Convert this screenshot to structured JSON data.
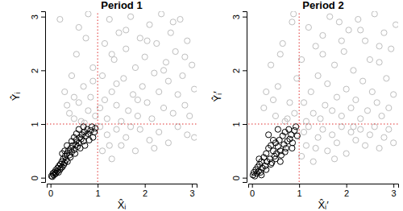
{
  "chart_data": [
    {
      "type": "scatter",
      "title": "Period 1",
      "x_label": "X̂ᵢ",
      "y_label": "Ŷᵢ",
      "xlim": [
        -0.08,
        3.1
      ],
      "ylim": [
        -0.08,
        3.1
      ],
      "xticks": [
        0,
        1,
        2,
        3
      ],
      "yticks": [
        0,
        1,
        2,
        3
      ],
      "marker": "open-circle",
      "vlines": [
        1
      ],
      "hlines": [
        1
      ],
      "series": [
        {
          "color": "#bebebe",
          "x": [
            0.2,
            0.3,
            0.4,
            0.45,
            0.5,
            0.55,
            0.6,
            0.65,
            0.7,
            0.75,
            0.8,
            0.85,
            0.9,
            0.95,
            0.35,
            0.6,
            0.8,
            0.9,
            0.5,
            0.72,
            1.1,
            1.2,
            1.3,
            1.4,
            1.5,
            1.6,
            1.8,
            1.9,
            2.1,
            2.3,
            2.5,
            2.7,
            2.9,
            1.05,
            1.7,
            2.2,
            1.25,
            3.05,
            1.05,
            1.1,
            1.15,
            1.2,
            1.25,
            1.3,
            1.35,
            1.4,
            1.45,
            1.5,
            1.55,
            1.6,
            1.65,
            1.7,
            1.75,
            1.8,
            1.85,
            1.9,
            1.95,
            2.0,
            2.05,
            2.1,
            2.15,
            2.2,
            2.25,
            2.3,
            2.35,
            2.4,
            2.45,
            2.5,
            2.55,
            2.6,
            2.65,
            2.7,
            2.75,
            2.8,
            2.85,
            2.9,
            2.95,
            3.0,
            3.05,
            1.15,
            1.4,
            1.85,
            2.05,
            2.4,
            2.6,
            2.85,
            1.6,
            1.3
          ],
          "values": [
            2.95,
            1.6,
            1.2,
            1.9,
            1.1,
            2.3,
            1.4,
            1.05,
            1.7,
            2.6,
            1.25,
            1.5,
            2.05,
            1.15,
            1.35,
            2.8,
            3.05,
            1.8,
            1.5,
            1.02,
            0.5,
            0.8,
            0.35,
            0.9,
            0.6,
            0.75,
            0.5,
            0.9,
            0.7,
            0.85,
            0.65,
            0.95,
            0.8,
            0.95,
            0.95,
            0.55,
            0.6,
            0.75,
            1.3,
            1.9,
            2.5,
            1.1,
            2.95,
            1.6,
            2.2,
            1.35,
            2.7,
            1.05,
            1.85,
            2.4,
            1.25,
            3.0,
            1.55,
            2.05,
            1.15,
            2.6,
            1.7,
            2.25,
            1.4,
            2.85,
            1.1,
            1.95,
            2.5,
            1.6,
            3.05,
            1.3,
            2.15,
            1.8,
            2.7,
            1.2,
            2.35,
            1.55,
            2.95,
            1.9,
            1.35,
            2.55,
            1.15,
            2.1,
            1.65,
            1.45,
            1.75,
            1.45,
            2.55,
            2.0,
            2.9,
            2.25,
            2.75,
            2.3
          ]
        },
        {
          "color": "#000000",
          "x": [
            0.02,
            0.04,
            0.05,
            0.07,
            0.08,
            0.1,
            0.11,
            0.12,
            0.14,
            0.15,
            0.17,
            0.18,
            0.2,
            0.21,
            0.22,
            0.24,
            0.25,
            0.27,
            0.28,
            0.3,
            0.31,
            0.33,
            0.35,
            0.36,
            0.38,
            0.4,
            0.42,
            0.43,
            0.45,
            0.47,
            0.5,
            0.52,
            0.54,
            0.55,
            0.57,
            0.6,
            0.62,
            0.63,
            0.65,
            0.67,
            0.7,
            0.72,
            0.73,
            0.75,
            0.78,
            0.8,
            0.82,
            0.85,
            0.88,
            0.9,
            0.93,
            0.95,
            0.35,
            0.5,
            0.6,
            0.45,
            0.3,
            0.7,
            0.25,
            0.55
          ],
          "values": [
            0.03,
            0.02,
            0.08,
            0.05,
            0.1,
            0.07,
            0.14,
            0.09,
            0.12,
            0.18,
            0.1,
            0.22,
            0.15,
            0.25,
            0.18,
            0.3,
            0.2,
            0.35,
            0.24,
            0.28,
            0.4,
            0.33,
            0.45,
            0.3,
            0.5,
            0.42,
            0.38,
            0.55,
            0.48,
            0.6,
            0.52,
            0.45,
            0.62,
            0.7,
            0.58,
            0.65,
            0.75,
            0.55,
            0.72,
            0.8,
            0.68,
            0.85,
            0.6,
            0.78,
            0.9,
            0.82,
            0.7,
            0.88,
            0.95,
            0.75,
            0.85,
            0.92,
            0.6,
            0.75,
            0.9,
            0.68,
            0.5,
            0.95,
            0.45,
            0.82
          ]
        }
      ]
    },
    {
      "type": "scatter",
      "title": "Period 2",
      "x_label": "X̂ᵢ′",
      "y_label": "Ŷᵢ′",
      "xlim": [
        -0.08,
        3.1
      ],
      "ylim": [
        -0.08,
        3.1
      ],
      "xticks": [
        0,
        1,
        2,
        3
      ],
      "yticks": [
        0,
        1,
        2,
        3
      ],
      "marker": "open-circle",
      "vlines": [
        1
      ],
      "hlines": [
        1
      ],
      "series": [
        {
          "color": "#bebebe",
          "x": [
            0.25,
            0.4,
            0.5,
            0.55,
            0.65,
            0.7,
            0.8,
            0.85,
            0.9,
            0.95,
            0.3,
            0.6,
            0.75,
            0.45,
            0.88,
            1.05,
            1.1,
            1.15,
            1.2,
            1.3,
            1.4,
            1.5,
            1.6,
            1.7,
            1.8,
            1.9,
            2.0,
            2.1,
            2.2,
            2.3,
            2.4,
            2.5,
            2.6,
            2.7,
            2.8,
            2.9,
            3.0,
            1.35,
            1.75,
            2.15,
            1.05,
            1.1,
            1.15,
            1.2,
            1.25,
            1.3,
            1.35,
            1.4,
            1.45,
            1.5,
            1.55,
            1.6,
            1.65,
            1.7,
            1.75,
            1.8,
            1.85,
            1.9,
            1.95,
            2.0,
            2.05,
            2.1,
            2.15,
            2.2,
            2.25,
            2.3,
            2.35,
            2.4,
            2.45,
            2.5,
            2.55,
            2.6,
            2.65,
            2.7,
            2.75,
            2.8,
            2.85,
            2.9,
            2.95,
            3.0,
            3.05,
            1.5,
            1.9,
            2.3,
            2.7
          ],
          "values": [
            1.3,
            2.1,
            1.15,
            1.7,
            2.5,
            1.05,
            1.4,
            2.9,
            1.2,
            1.85,
            1.6,
            2.3,
            1.1,
            1.45,
            3.05,
            0.4,
            0.85,
            0.6,
            0.95,
            0.3,
            0.75,
            0.9,
            0.5,
            0.8,
            0.65,
            0.95,
            0.45,
            0.85,
            0.7,
            0.9,
            0.6,
            0.8,
            0.95,
            0.55,
            0.75,
            0.9,
            0.65,
            0.55,
            0.35,
            0.95,
            2.2,
            1.4,
            1.05,
            2.8,
            1.6,
            1.2,
            2.45,
            1.9,
            1.1,
            2.65,
            1.35,
            1.75,
            3.0,
            1.25,
            2.1,
            1.5,
            2.9,
            1.15,
            2.35,
            1.65,
            2.75,
            1.3,
            2.0,
            1.45,
            2.95,
            1.1,
            1.8,
            2.55,
            1.25,
            2.2,
            1.6,
            3.05,
            1.4,
            2.45,
            1.15,
            2.7,
            1.85,
            1.3,
            2.4,
            1.55,
            2.85,
            2.3,
            2.55,
            2.75,
            2.15
          ]
        },
        {
          "color": "#000000",
          "x": [
            0.02,
            0.04,
            0.06,
            0.08,
            0.1,
            0.12,
            0.14,
            0.16,
            0.18,
            0.2,
            0.22,
            0.25,
            0.28,
            0.3,
            0.32,
            0.35,
            0.38,
            0.4,
            0.42,
            0.45,
            0.48,
            0.5,
            0.52,
            0.55,
            0.58,
            0.6,
            0.62,
            0.65,
            0.68,
            0.7,
            0.72,
            0.75,
            0.78,
            0.8,
            0.83,
            0.86,
            0.9,
            0.93,
            0.96,
            0.3,
            0.4,
            0.5,
            0.6,
            0.2,
            0.7,
            0.45,
            0.35,
            0.55,
            0.15,
            0.85
          ],
          "values": [
            0.05,
            0.1,
            0.03,
            0.15,
            0.08,
            0.2,
            0.12,
            0.25,
            0.1,
            0.3,
            0.18,
            0.38,
            0.22,
            0.45,
            0.3,
            0.55,
            0.35,
            0.6,
            0.28,
            0.5,
            0.4,
            0.65,
            0.45,
            0.58,
            0.7,
            0.5,
            0.42,
            0.78,
            0.62,
            0.85,
            0.55,
            0.68,
            0.9,
            0.72,
            0.8,
            0.65,
            0.88,
            0.95,
            0.78,
            0.15,
            0.25,
            0.35,
            0.3,
            0.05,
            0.48,
            0.7,
            0.8,
            0.9,
            0.35,
            0.55
          ]
        }
      ]
    }
  ]
}
